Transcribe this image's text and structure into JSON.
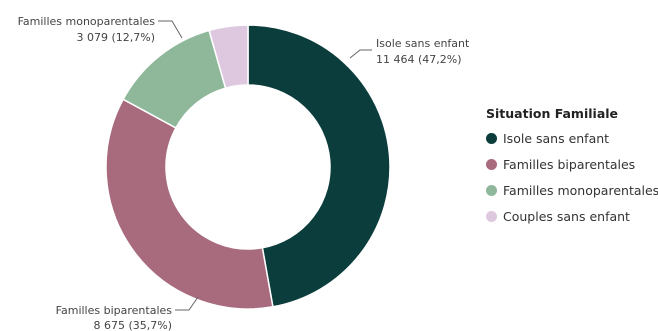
{
  "chart_data": {
    "type": "pie",
    "donut": true,
    "title": "",
    "legend": {
      "title": "Situation Familiale",
      "position": "right"
    },
    "slices": [
      {
        "label": "Isole sans enfant",
        "value": 11464,
        "percent": 47.2,
        "display": "11 464 (47,2%)",
        "color": "#0b3d3d"
      },
      {
        "label": "Familles biparentales",
        "value": 8675,
        "percent": 35.7,
        "display": "8 675 (35,7%)",
        "color": "#a86a7d"
      },
      {
        "label": "Familles monoparentales",
        "value": 3079,
        "percent": 12.7,
        "display": "3 079 (12,7%)",
        "color": "#8fb89a"
      },
      {
        "label": "Couples sans enfant",
        "value": 1073,
        "percent": 4.4,
        "display": "",
        "color": "#dec8e0"
      }
    ]
  }
}
